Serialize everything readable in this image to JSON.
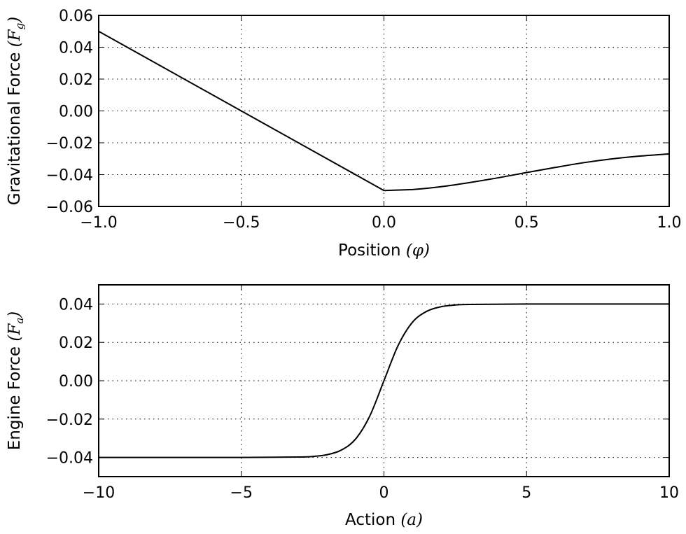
{
  "chart_data": [
    {
      "type": "line",
      "title": "",
      "xlabel": "Position (φ)",
      "ylabel": "Gravitational Force (F_g)",
      "xlabel_text": "Position ",
      "xlabel_math": "(φ)",
      "ylabel_text": "Gravitational Force ",
      "ylabel_math": "(F",
      "ylabel_sub": "g",
      "ylabel_close": ")",
      "xlim": [
        -1.0,
        1.0
      ],
      "ylim": [
        -0.06,
        0.06
      ],
      "xticks": [
        -1.0,
        -0.5,
        0.0,
        0.5,
        1.0
      ],
      "xtick_labels": [
        "−1.0",
        "−0.5",
        "0.0",
        "0.5",
        "1.0"
      ],
      "yticks": [
        0.06,
        0.04,
        0.02,
        0.0,
        -0.02,
        -0.04,
        -0.06
      ],
      "ytick_labels": [
        "0.06",
        "0.04",
        "0.02",
        "0.00",
        "−0.02",
        "−0.04",
        "−0.06"
      ],
      "grid": true,
      "series": [
        {
          "name": "gravitational force",
          "x": [
            -1.0,
            -0.75,
            -0.5,
            -0.25,
            0.0,
            0.1,
            0.2,
            0.3,
            0.4,
            0.5,
            0.6,
            0.7,
            0.8,
            0.9,
            1.0
          ],
          "y": [
            0.05,
            0.025,
            0.0,
            -0.025,
            -0.05,
            -0.0494,
            -0.0476,
            -0.045,
            -0.042,
            -0.0387,
            -0.0355,
            -0.0325,
            -0.0301,
            -0.0283,
            -0.027
          ]
        }
      ]
    },
    {
      "type": "line",
      "title": "",
      "xlabel": "Action (a)",
      "ylabel": "Engine Force (F_a)",
      "xlabel_text": "Action ",
      "xlabel_math": "(a)",
      "ylabel_text": "Engine Force ",
      "ylabel_math": "(F",
      "ylabel_sub": "a",
      "ylabel_close": ")",
      "xlim": [
        -10,
        10
      ],
      "ylim": [
        -0.05,
        0.05
      ],
      "xticks": [
        -10,
        -5,
        0,
        5,
        10
      ],
      "xtick_labels": [
        "−10",
        "−5",
        "0",
        "5",
        "10"
      ],
      "yticks": [
        0.04,
        0.02,
        0.0,
        -0.02,
        -0.04
      ],
      "ytick_labels": [
        "0.04",
        "0.02",
        "0.00",
        "−0.02",
        "−0.04"
      ],
      "grid": true,
      "series": [
        {
          "name": "engine force",
          "x": [
            -10,
            -5,
            -3,
            -2.5,
            -2,
            -1.5,
            -1,
            -0.5,
            0,
            0.5,
            1,
            1.5,
            2,
            2.5,
            3,
            5,
            10
          ],
          "y": [
            -0.04,
            -0.04,
            -0.0398,
            -0.0395,
            -0.0386,
            -0.0362,
            -0.0305,
            -0.0185,
            0.0,
            0.0185,
            0.0305,
            0.0362,
            0.0386,
            0.0395,
            0.0398,
            0.04,
            0.04
          ]
        }
      ]
    }
  ]
}
